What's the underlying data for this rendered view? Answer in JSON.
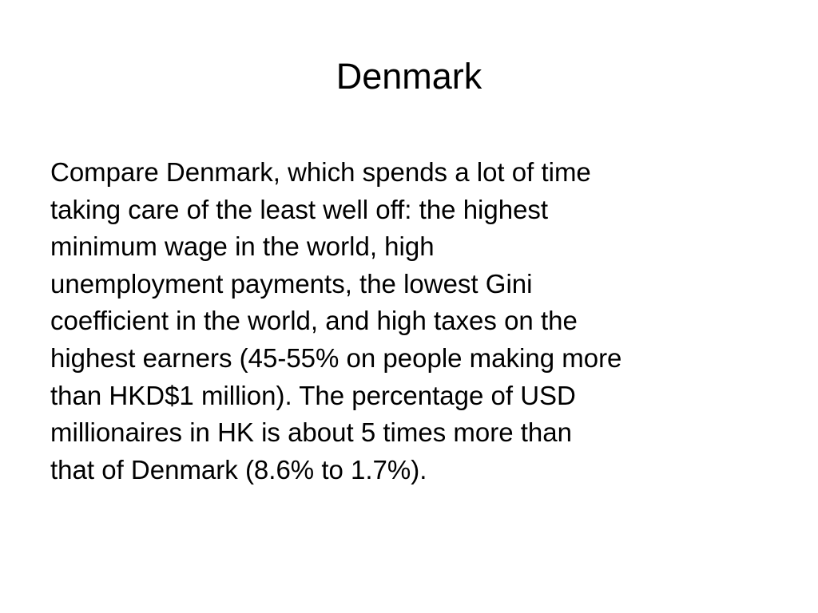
{
  "slide": {
    "title": "Denmark",
    "lines": [
      "Compare Denmark, which spends a lot of time",
      "taking care of the least well off: the highest",
      "minimum wage in the world, high",
      "unemployment payments, the lowest Gini",
      "coefficient in the world, and high taxes on the",
      "highest earners (45-55% on people making more",
      "than HKD$1 million). The percentage of USD",
      "millionaires in HK is about 5 times more than",
      "that of Denmark (8.6% to 1.7%)."
    ]
  }
}
